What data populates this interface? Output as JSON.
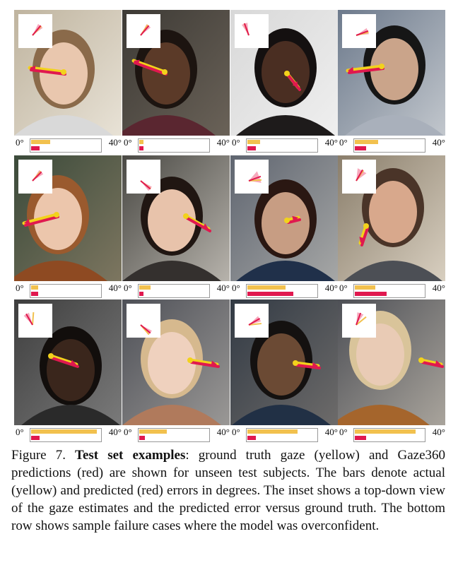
{
  "figure": {
    "scale_min_label": "0°",
    "scale_max_label": "40°",
    "colors": {
      "ground_truth": "#f2c14e",
      "prediction": "#e0194f"
    },
    "examples": [
      {
        "actual_error_frac": 0.28,
        "predicted_error_frac": 0.12
      },
      {
        "actual_error_frac": 0.06,
        "predicted_error_frac": 0.06
      },
      {
        "actual_error_frac": 0.18,
        "predicted_error_frac": 0.12
      },
      {
        "actual_error_frac": 0.34,
        "predicted_error_frac": 0.16
      },
      {
        "actual_error_frac": 0.1,
        "predicted_error_frac": 0.1
      },
      {
        "actual_error_frac": 0.16,
        "predicted_error_frac": 0.06
      },
      {
        "actual_error_frac": 0.55,
        "predicted_error_frac": 0.66
      },
      {
        "actual_error_frac": 0.3,
        "predicted_error_frac": 0.46
      },
      {
        "actual_error_frac": 0.95,
        "predicted_error_frac": 0.12
      },
      {
        "actual_error_frac": 0.4,
        "predicted_error_frac": 0.08
      },
      {
        "actual_error_frac": 0.72,
        "predicted_error_frac": 0.12
      },
      {
        "actual_error_frac": 0.88,
        "predicted_error_frac": 0.16
      }
    ]
  },
  "caption": {
    "label": "Figure 7.",
    "bold_title": "Test set examples",
    "body": ": ground truth gaze (yellow) and Gaze360 predictions (red) are shown for unseen test subjects. The bars denote actual (yellow) and predicted (red) errors in degrees. The inset shows a top-down view of the gaze estimates and the predicted error versus ground truth. The bottom row shows sample failure cases where the model was overconfident."
  }
}
